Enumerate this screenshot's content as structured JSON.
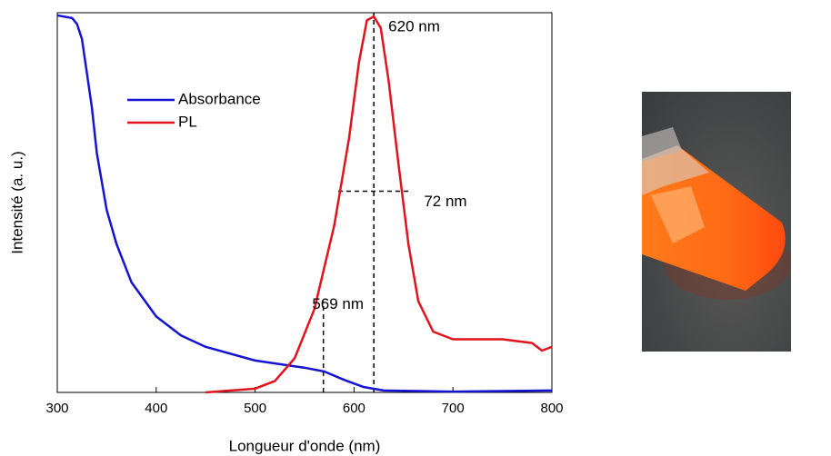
{
  "chart_data": {
    "type": "line",
    "x_label": "Longueur d'onde (nm)",
    "y_label": "Intensité (a. u.)",
    "xlim": [
      300,
      800
    ],
    "xticks": [
      300,
      400,
      500,
      600,
      700,
      800
    ],
    "ylim": [
      0,
      1
    ],
    "legend": "upper left",
    "series": [
      {
        "name": "Absorbance",
        "color": "#1414d2",
        "x": [
          300,
          315,
          320,
          325,
          330,
          335,
          340,
          350,
          360,
          375,
          400,
          425,
          450,
          500,
          550,
          570,
          590,
          610,
          630,
          700,
          800
        ],
        "values": [
          0.993,
          0.986,
          0.97,
          0.93,
          0.84,
          0.75,
          0.63,
          0.48,
          0.39,
          0.29,
          0.2,
          0.15,
          0.12,
          0.084,
          0.065,
          0.055,
          0.033,
          0.014,
          0.005,
          0.002,
          0.005
        ]
      },
      {
        "name": "PL",
        "color": "#e0141e",
        "x": [
          450,
          500,
          520,
          540,
          560,
          580,
          595,
          605,
          613,
          620,
          627,
          635,
          645,
          655,
          665,
          680,
          700,
          750,
          780,
          790,
          800
        ],
        "values": [
          0,
          0.01,
          0.03,
          0.09,
          0.22,
          0.44,
          0.67,
          0.87,
          0.98,
          0.99,
          0.96,
          0.82,
          0.6,
          0.39,
          0.24,
          0.16,
          0.14,
          0.14,
          0.13,
          0.11,
          0.12
        ]
      }
    ],
    "annotations": [
      {
        "text": "620 nm",
        "x": 620,
        "y": 0.99
      },
      {
        "text": "72 nm",
        "x": 656,
        "y": 0.53
      },
      {
        "text": "569 nm",
        "x": 569,
        "y": 0.26
      }
    ],
    "reference_lines": [
      {
        "x": [
          620,
          620
        ],
        "y": [
          0,
          1
        ]
      },
      {
        "x": [
          569,
          569
        ],
        "y": [
          0,
          0.24
        ]
      },
      {
        "x": [
          584,
          656
        ],
        "y": [
          0.53,
          0.53
        ]
      }
    ]
  }
}
